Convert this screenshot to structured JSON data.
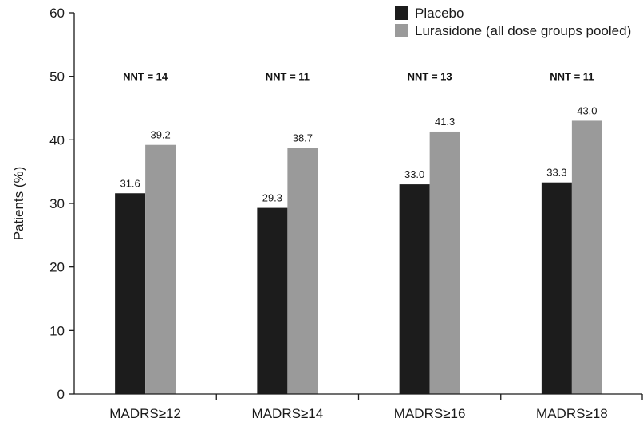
{
  "chart_data": {
    "type": "bar",
    "categories": [
      "MADRS≥12",
      "MADRS≥14",
      "MADRS≥16",
      "MADRS≥18"
    ],
    "series": [
      {
        "name": "Placebo",
        "values": [
          31.6,
          29.3,
          33.0,
          33.3
        ],
        "labels": [
          "31.6",
          "29.3",
          "33.0",
          "33.3"
        ],
        "color": "#1c1c1c"
      },
      {
        "name": "Lurasidone (all dose groups pooled)",
        "values": [
          39.2,
          38.7,
          41.3,
          43.0
        ],
        "labels": [
          "39.2",
          "38.7",
          "41.3",
          "43.0"
        ],
        "color": "#9a9a9a"
      }
    ],
    "annotations": [
      "NNT = 14",
      "NNT = 11",
      "NNT = 13",
      "NNT = 11"
    ],
    "ylabel": "Patients (%)",
    "xlabel": "",
    "ylim": [
      0,
      60
    ],
    "yticks": [
      "0",
      "10",
      "20",
      "30",
      "40",
      "50",
      "60"
    ],
    "grid": false,
    "legend_position": "top-right"
  }
}
